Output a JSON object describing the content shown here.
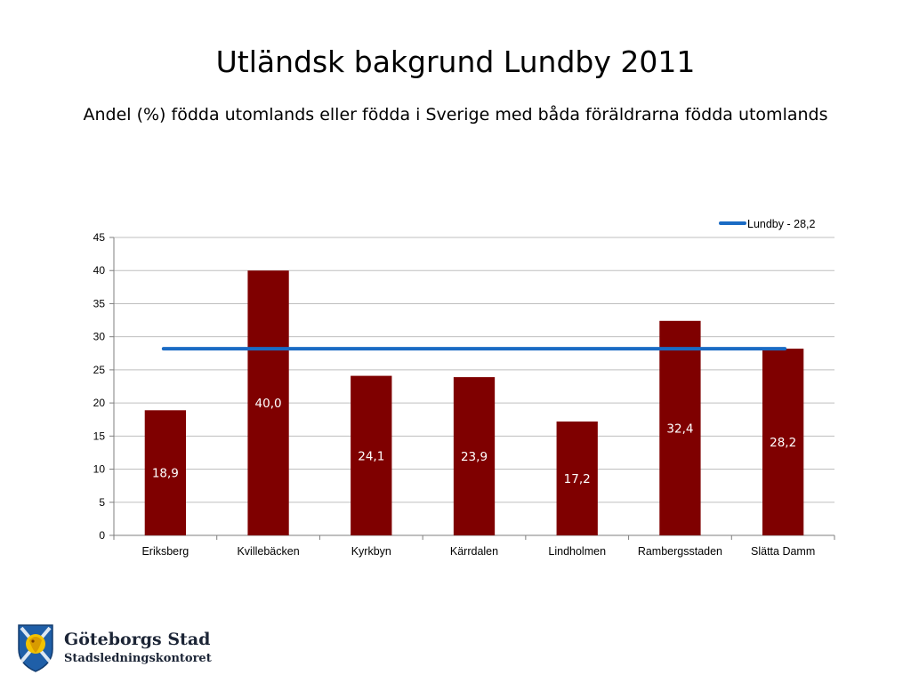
{
  "title": "Utländsk bakgrund Lundby 2011",
  "subtitle": "Andel (%) födda utomlands eller födda i Sverige med båda föräldrarna födda utomlands",
  "logo": {
    "name": "Göteborgs Stad",
    "department": "Stadsledningskontoret"
  },
  "colors": {
    "bar": "#7f0000",
    "reference_line": "#1a6bc4",
    "grid": "#bfbfbf",
    "bar_label": "#ffffff"
  },
  "chart_data": {
    "type": "bar",
    "categories": [
      "Eriksberg",
      "Kvillebäcken",
      "Kyrkbyn",
      "Kärrdalen",
      "Lindholmen",
      "Rambergsstaden",
      "Slätta Damm"
    ],
    "values": [
      18.9,
      40.0,
      24.1,
      23.9,
      17.2,
      32.4,
      28.2
    ],
    "value_labels": [
      "18,9",
      "40,0",
      "24,1",
      "23,9",
      "17,2",
      "32,4",
      "28,2"
    ],
    "reference_line": {
      "name": "Lundby - 28,2",
      "value": 28.2
    },
    "ylim": [
      0,
      45
    ],
    "yticks": [
      0,
      5,
      10,
      15,
      20,
      25,
      30,
      35,
      40,
      45
    ],
    "xlabel": "",
    "ylabel": "",
    "grid": true,
    "legend_position": "top-right"
  }
}
